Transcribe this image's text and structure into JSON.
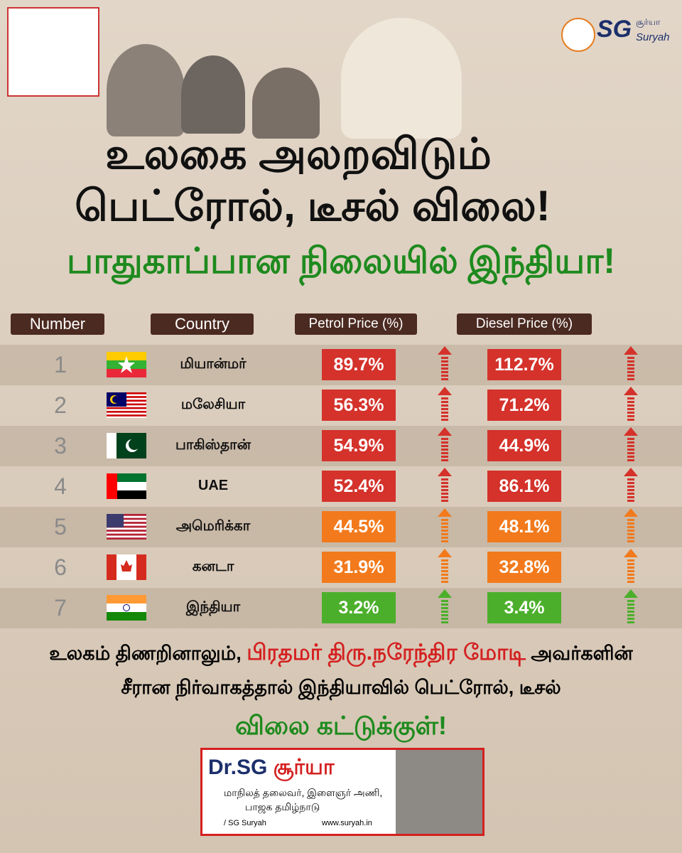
{
  "logo": {
    "initials": "SG",
    "name_tamil": "சூர்யா",
    "name_english": "Suryah"
  },
  "header": {
    "title_line1": "உலகை அலறவிடும்",
    "title_line2": "பெட்ரோல், டீசல் விலை!",
    "subtitle": "பாதுகாப்பான நிலையில் இந்தியா!"
  },
  "table": {
    "columns": [
      "Number",
      "Country",
      "Petrol Price (%)",
      "Diesel Price (%)"
    ],
    "rows": [
      [
        "1",
        "மியான்மர்",
        "89.7%",
        "112.7%"
      ],
      [
        "2",
        "மலேசியா",
        "56.3%",
        "71.2%"
      ],
      [
        "3",
        "பாகிஸ்தான்",
        "54.9%",
        "44.9%"
      ],
      [
        "4",
        "UAE",
        "52.4%",
        "86.1%"
      ],
      [
        "5",
        "அமெரிக்கா",
        "44.5%",
        "48.1%"
      ],
      [
        "6",
        "கனடா",
        "31.9%",
        "32.8%"
      ],
      [
        "7",
        "இந்தியா",
        "3.2%",
        "3.4%"
      ]
    ]
  },
  "footer": {
    "line1_start": "உலகம் திணறினாலும்,",
    "line1_highlight": "பிரதமர் திரு.நரேந்திர மோடி",
    "line1_end": "அவர்களின்",
    "line2": "சீரான நிர்வாகத்தால் இந்தியாவில் பெட்ரோல், டீசல்",
    "line3": "விலை கட்டுக்குள்!"
  },
  "card": {
    "name_prefix": "Dr.SG",
    "name": "சூர்யா",
    "role": "மாநிலத் தலைவர், இளைஞர் அணி,",
    "party": "பாஜக தமிழ்நாடு",
    "handle": "/ SG Suryah",
    "website": "www.suryah.in"
  }
}
